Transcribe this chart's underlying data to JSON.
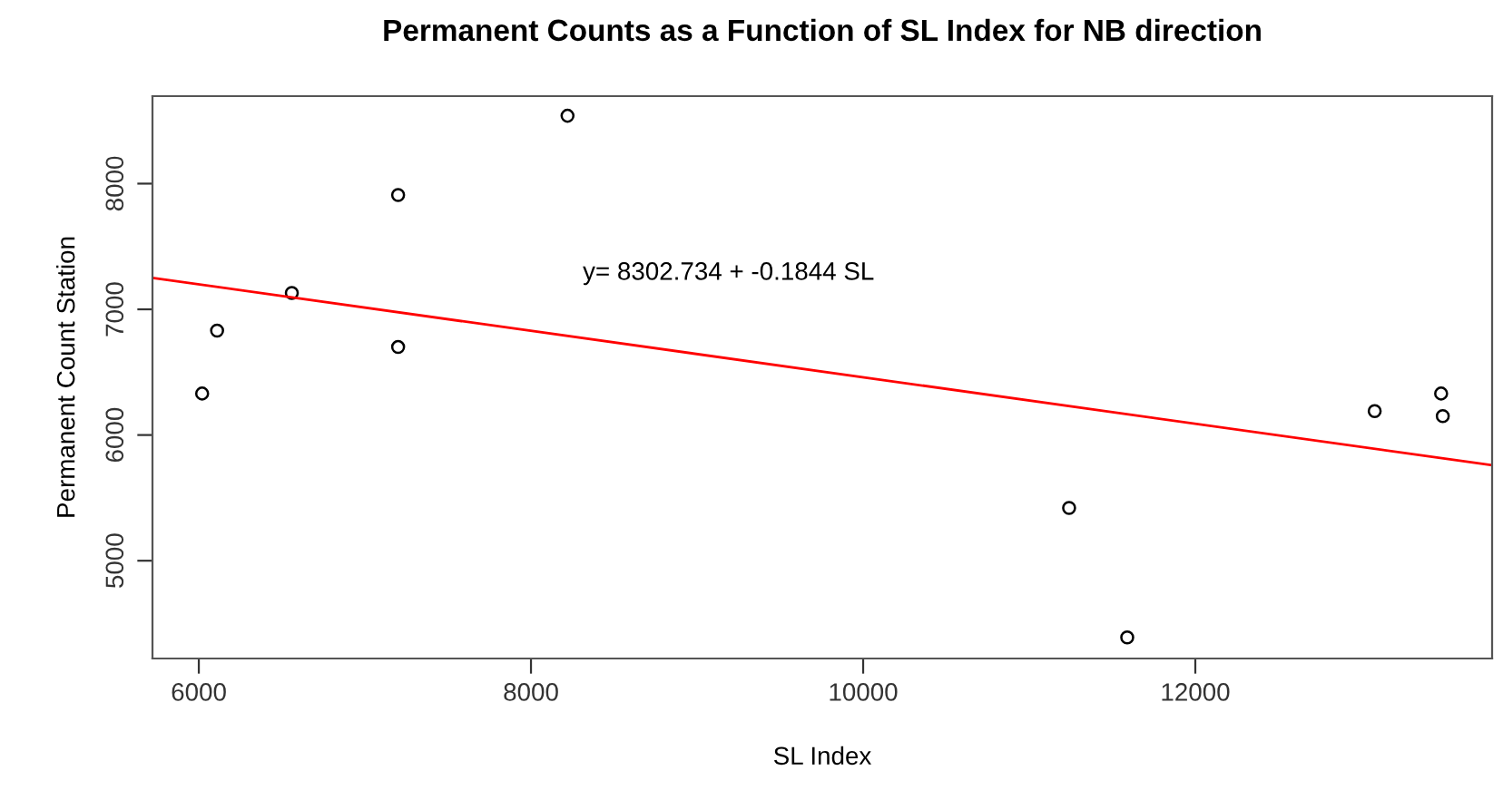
{
  "chart_data": {
    "type": "scatter",
    "title": "Permanent Counts as a Function of SL Index for NB direction",
    "xlabel": "SL Index",
    "ylabel": "Permanent Count Station",
    "annotations": [
      "y= 8302.734 + -0.1844 SL"
    ],
    "series": [
      {
        "color": "#000000",
        "marker": "circle",
        "x": [
          6020,
          6110,
          6560,
          7200,
          7200,
          8220,
          11240,
          11590,
          13080,
          13480,
          13490
        ],
        "values": [
          6330,
          6830,
          7130,
          7910,
          6700,
          8540,
          5420,
          4390,
          6190,
          6330,
          6150
        ]
      },
      {
        "type": "line",
        "color": "#ff0000",
        "marker": "none",
        "x": [
          5721,
          13787
        ],
        "values": [
          7250,
          5760
        ]
      }
    ],
    "xlim": [
      5721,
      13787
    ],
    "ylim": [
      4222,
      8696
    ],
    "xticks": [
      6000,
      8000,
      10000,
      12000
    ],
    "yticks": [
      5000,
      6000,
      7000,
      8000
    ],
    "grid": false,
    "legend": false
  }
}
